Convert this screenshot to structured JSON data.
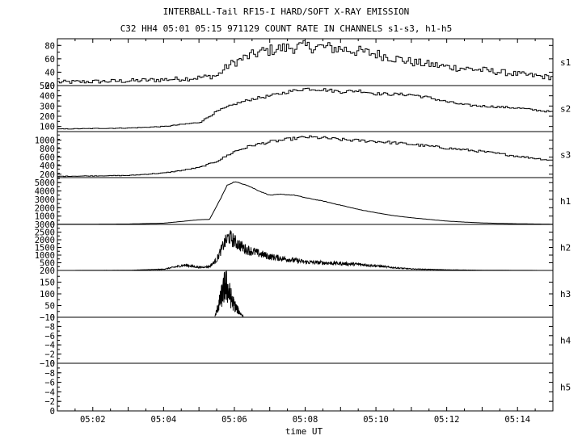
{
  "title_line1": "INTERBALL-Tail RF15-I HARD/SOFT X-RAY EMISSION",
  "title_line2": "C32 HH4 05:01 05:15 971129  COUNT RATE IN CHANNELS s1-s3, h1-h5",
  "xlabel": "time UT",
  "chart_data": {
    "type": "line",
    "title": "INTERBALL-Tail RF15-I HARD/SOFT X-RAY EMISSION",
    "subtitle": "C32 HH4 05:01 05:15 971129  COUNT RATE IN CHANNELS s1-s3, h1-h5",
    "xlabel": "time UT",
    "x_unit": "minutes since 05:00 UT",
    "xlim": [
      1.0,
      15.0
    ],
    "x_ticks": [
      {
        "value": 2,
        "label": "05:02"
      },
      {
        "value": 4,
        "label": "05:04"
      },
      {
        "value": 6,
        "label": "05:06"
      },
      {
        "value": 8,
        "label": "05:08"
      },
      {
        "value": 10,
        "label": "05:10"
      },
      {
        "value": 12,
        "label": "05:12"
      },
      {
        "value": 14,
        "label": "05:14"
      }
    ],
    "grid": false,
    "panels": [
      {
        "name": "s1",
        "ylim": [
          20,
          90
        ],
        "yticks": [
          20,
          40,
          60,
          80
        ],
        "style": "step-noisy",
        "x": [
          1.0,
          2.0,
          3.0,
          4.0,
          4.8,
          5.5,
          5.8,
          6.2,
          6.7,
          7.2,
          7.8,
          8.3,
          9.0,
          10.0,
          11.0,
          12.0,
          13.0,
          14.0,
          15.0
        ],
        "values": [
          25,
          26,
          27,
          29,
          31,
          35,
          50,
          60,
          70,
          75,
          78,
          78,
          75,
          67,
          55,
          48,
          43,
          37,
          32
        ]
      },
      {
        "name": "s2",
        "ylim": [
          50,
          500
        ],
        "yticks": [
          100,
          200,
          300,
          400,
          500
        ],
        "style": "step",
        "x": [
          1.0,
          2.0,
          3.0,
          4.0,
          4.5,
          5.0,
          5.5,
          6.0,
          6.5,
          7.0,
          7.5,
          8.0,
          8.5,
          9.0,
          9.5,
          10.0,
          11.0,
          11.5,
          12.0,
          12.5,
          13.0,
          14.0,
          14.5,
          15.0
        ],
        "values": [
          75,
          80,
          85,
          100,
          120,
          140,
          250,
          320,
          370,
          400,
          440,
          470,
          460,
          440,
          450,
          420,
          410,
          380,
          340,
          310,
          300,
          280,
          260,
          240
        ]
      },
      {
        "name": "s3",
        "ylim": [
          120,
          1200
        ],
        "yticks": [
          200,
          400,
          600,
          800,
          1000
        ],
        "style": "step",
        "x": [
          1.0,
          2.0,
          3.0,
          4.0,
          4.5,
          5.0,
          5.5,
          6.0,
          6.5,
          7.0,
          7.5,
          8.0,
          8.5,
          9.0,
          10.0,
          11.0,
          12.0,
          13.0,
          14.0,
          15.0
        ],
        "values": [
          150,
          160,
          170,
          230,
          290,
          360,
          510,
          740,
          880,
          960,
          1020,
          1070,
          1050,
          1010,
          970,
          900,
          810,
          730,
          620,
          520
        ]
      },
      {
        "name": "h1",
        "ylim": [
          0,
          5600
        ],
        "yticks": [
          0,
          1000,
          2000,
          3000,
          4000,
          5000
        ],
        "style": "line",
        "x": [
          1.0,
          2.0,
          3.0,
          4.0,
          4.5,
          5.0,
          5.3,
          5.6,
          5.8,
          6.0,
          6.3,
          6.7,
          7.0,
          7.3,
          7.7,
          8.0,
          8.5,
          9.0,
          9.5,
          10.0,
          10.5,
          11.0,
          11.5,
          12.0,
          12.5,
          13.0,
          13.5,
          14.0,
          14.5,
          15.0
        ],
        "values": [
          20,
          30,
          50,
          150,
          350,
          560,
          600,
          3000,
          4700,
          5100,
          4800,
          4000,
          3500,
          3600,
          3500,
          3200,
          2800,
          2300,
          1800,
          1400,
          1050,
          800,
          600,
          400,
          280,
          180,
          120,
          80,
          50,
          30
        ]
      },
      {
        "name": "h2",
        "ylim": [
          0,
          3000
        ],
        "yticks": [
          500,
          1000,
          1500,
          2000,
          2500,
          3000
        ],
        "style": "noisy",
        "x": [
          1.0,
          3.0,
          4.0,
          4.6,
          5.0,
          5.3,
          5.5,
          5.7,
          5.85,
          6.0,
          6.3,
          6.7,
          7.0,
          7.3,
          7.6,
          8.0,
          8.5,
          9.0,
          9.5,
          10.0,
          10.5,
          11.0,
          12.0,
          13.0,
          14.0,
          15.0
        ],
        "values": [
          0,
          10,
          80,
          350,
          200,
          250,
          700,
          1700,
          2200,
          1900,
          1400,
          1100,
          900,
          800,
          700,
          550,
          500,
          450,
          400,
          300,
          180,
          100,
          40,
          15,
          5,
          0
        ]
      },
      {
        "name": "h3",
        "ylim": [
          0,
          200
        ],
        "yticks": [
          0,
          50,
          100,
          150,
          200
        ],
        "style": "burst",
        "x": [
          5.45,
          5.55,
          5.65,
          5.75,
          5.85,
          5.95,
          6.05,
          6.15,
          6.25
        ],
        "values": [
          5,
          60,
          120,
          175,
          130,
          80,
          50,
          25,
          5
        ]
      },
      {
        "name": "h4",
        "ylim": [
          0,
          10
        ],
        "yticks": [
          0,
          2,
          4,
          6,
          8,
          10
        ],
        "ytick_labels": [
          "0",
          "−2",
          "−4",
          "−6",
          "−8",
          "−10"
        ],
        "style": "empty",
        "x": [],
        "values": []
      },
      {
        "name": "h5",
        "ylim": [
          0,
          10
        ],
        "yticks": [
          0,
          2,
          4,
          6,
          8,
          10
        ],
        "ytick_labels": [
          "0",
          "−2",
          "−4",
          "−6",
          "−8",
          "−10"
        ],
        "style": "empty",
        "x": [],
        "values": []
      }
    ]
  }
}
